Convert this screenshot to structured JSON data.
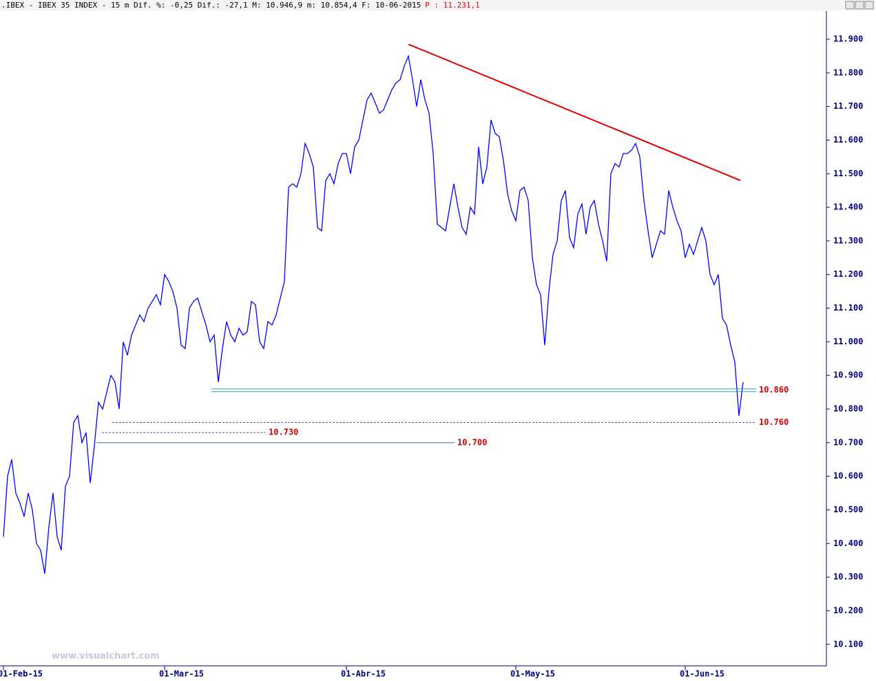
{
  "chart_data": {
    "type": "line",
    "header": ".IBEX - IBEX 35 INDEX -  15 m Dif. %: -0,25 Dif.: -27,1 M: 10.946,9 m: 10.854,4 F: 10-06-2015",
    "header_price": "P : 11.231,1",
    "watermark": "www.visualchart.com",
    "categories": [
      "01-Feb-15",
      null,
      null,
      null,
      null,
      null,
      null,
      null,
      null,
      null,
      null,
      null,
      null,
      null,
      null,
      null,
      null,
      null,
      null,
      null,
      null,
      null,
      null,
      null,
      null,
      null,
      null,
      null,
      null,
      null,
      null,
      null,
      null,
      null,
      null,
      null,
      null,
      null,
      null,
      "01-Mar-15",
      null,
      null,
      null,
      null,
      null,
      null,
      null,
      null,
      null,
      null,
      null,
      null,
      null,
      null,
      null,
      null,
      null,
      null,
      null,
      null,
      null,
      null,
      null,
      null,
      null,
      null,
      null,
      null,
      null,
      null,
      null,
      null,
      null,
      null,
      null,
      null,
      null,
      null,
      null,
      null,
      null,
      null,
      null,
      "01-Abr-15",
      null,
      null,
      null,
      null,
      null,
      null,
      null,
      null,
      null,
      null,
      null,
      null,
      null,
      null,
      null,
      null,
      null,
      null,
      null,
      null,
      null,
      null,
      null,
      null,
      null,
      null,
      null,
      null,
      null,
      null,
      null,
      null,
      null,
      null,
      null,
      null,
      null,
      null,
      null,
      null,
      "01-May-15",
      null,
      null,
      null,
      null,
      null,
      null,
      null,
      null,
      null,
      null,
      null,
      null,
      null,
      null,
      null,
      null,
      null,
      null,
      null,
      null,
      null,
      null,
      null,
      null,
      null,
      null,
      null,
      null,
      null,
      null,
      null,
      null,
      null,
      null,
      null,
      null,
      null,
      null,
      null,
      null,
      "01-Jun-15",
      null,
      null,
      null,
      null,
      null,
      null,
      null,
      null,
      null,
      null,
      null,
      null,
      null,
      null
    ],
    "series": [
      {
        "name": "IBEX 35",
        "color": "#0000ff",
        "values": [
          10420,
          10600,
          10650,
          10550,
          10520,
          10480,
          10550,
          10500,
          10400,
          10380,
          10310,
          10450,
          10550,
          10420,
          10380,
          10570,
          10600,
          10760,
          10780,
          10700,
          10730,
          10580,
          10690,
          10820,
          10800,
          10850,
          10900,
          10880,
          10800,
          11000,
          10960,
          11020,
          11050,
          11080,
          11060,
          11100,
          11120,
          11140,
          11110,
          11200,
          11180,
          11150,
          11100,
          10990,
          10980,
          11100,
          11120,
          11130,
          11090,
          11050,
          11000,
          11020,
          10880,
          10980,
          11060,
          11020,
          11000,
          11040,
          11020,
          11030,
          11120,
          11110,
          11000,
          10980,
          11060,
          11050,
          11080,
          11130,
          11180,
          11460,
          11470,
          11460,
          11500,
          11590,
          11560,
          11520,
          11340,
          11330,
          11480,
          11500,
          11470,
          11530,
          11560,
          11560,
          11500,
          11580,
          11600,
          11660,
          11720,
          11740,
          11710,
          11680,
          11690,
          11720,
          11750,
          11770,
          11780,
          11820,
          11850,
          11780,
          11700,
          11780,
          11720,
          11680,
          11560,
          11350,
          11340,
          11330,
          11400,
          11470,
          11400,
          11340,
          11320,
          11400,
          11380,
          11580,
          11470,
          11520,
          11660,
          11620,
          11610,
          11540,
          11440,
          11390,
          11360,
          11450,
          11460,
          11420,
          11250,
          11170,
          11140,
          10990,
          11150,
          11260,
          11300,
          11420,
          11450,
          11310,
          11280,
          11380,
          11410,
          11320,
          11400,
          11420,
          11350,
          11300,
          11240,
          11500,
          11530,
          11520,
          11560,
          11560,
          11570,
          11590,
          11550,
          11420,
          11330,
          11250,
          11290,
          11330,
          11320,
          11450,
          11400,
          11360,
          11330,
          11250,
          11290,
          11260,
          11300,
          11340,
          11300,
          11200,
          11170,
          11200,
          11070,
          11050,
          10990,
          10940,
          10780,
          10880
        ]
      }
    ],
    "ylim": [
      10036,
      11984
    ],
    "yticks": [
      {
        "value": 10100,
        "label": "10.100"
      },
      {
        "value": 10200,
        "label": "10.200"
      },
      {
        "value": 10300,
        "label": "10.300"
      },
      {
        "value": 10400,
        "label": "10.400"
      },
      {
        "value": 10500,
        "label": "10.500"
      },
      {
        "value": 10600,
        "label": "10.600"
      },
      {
        "value": 10700,
        "label": "10.700"
      },
      {
        "value": 10800,
        "label": "10.800"
      },
      {
        "value": 10900,
        "label": "10.900"
      },
      {
        "value": 11000,
        "label": "11.000"
      },
      {
        "value": 11100,
        "label": "11.100"
      },
      {
        "value": 11200,
        "label": "11.200"
      },
      {
        "value": 11300,
        "label": "11.300"
      },
      {
        "value": 11400,
        "label": "11.400"
      },
      {
        "value": 11500,
        "label": "11.500"
      },
      {
        "value": 11600,
        "label": "11.600"
      },
      {
        "value": 11700,
        "label": "11.700"
      },
      {
        "value": 11800,
        "label": "11.800"
      },
      {
        "value": 11900,
        "label": "11.900"
      }
    ],
    "levels": [
      {
        "value": 10860,
        "label": "10.860"
      },
      {
        "value": 10760,
        "label": "10.760"
      },
      {
        "value": 10730,
        "label": "10.730"
      },
      {
        "value": 10700,
        "label": "10.700"
      }
    ],
    "trendline": {
      "color": "#e00000",
      "values": [
        11885,
        11480
      ]
    },
    "grid": false
  }
}
